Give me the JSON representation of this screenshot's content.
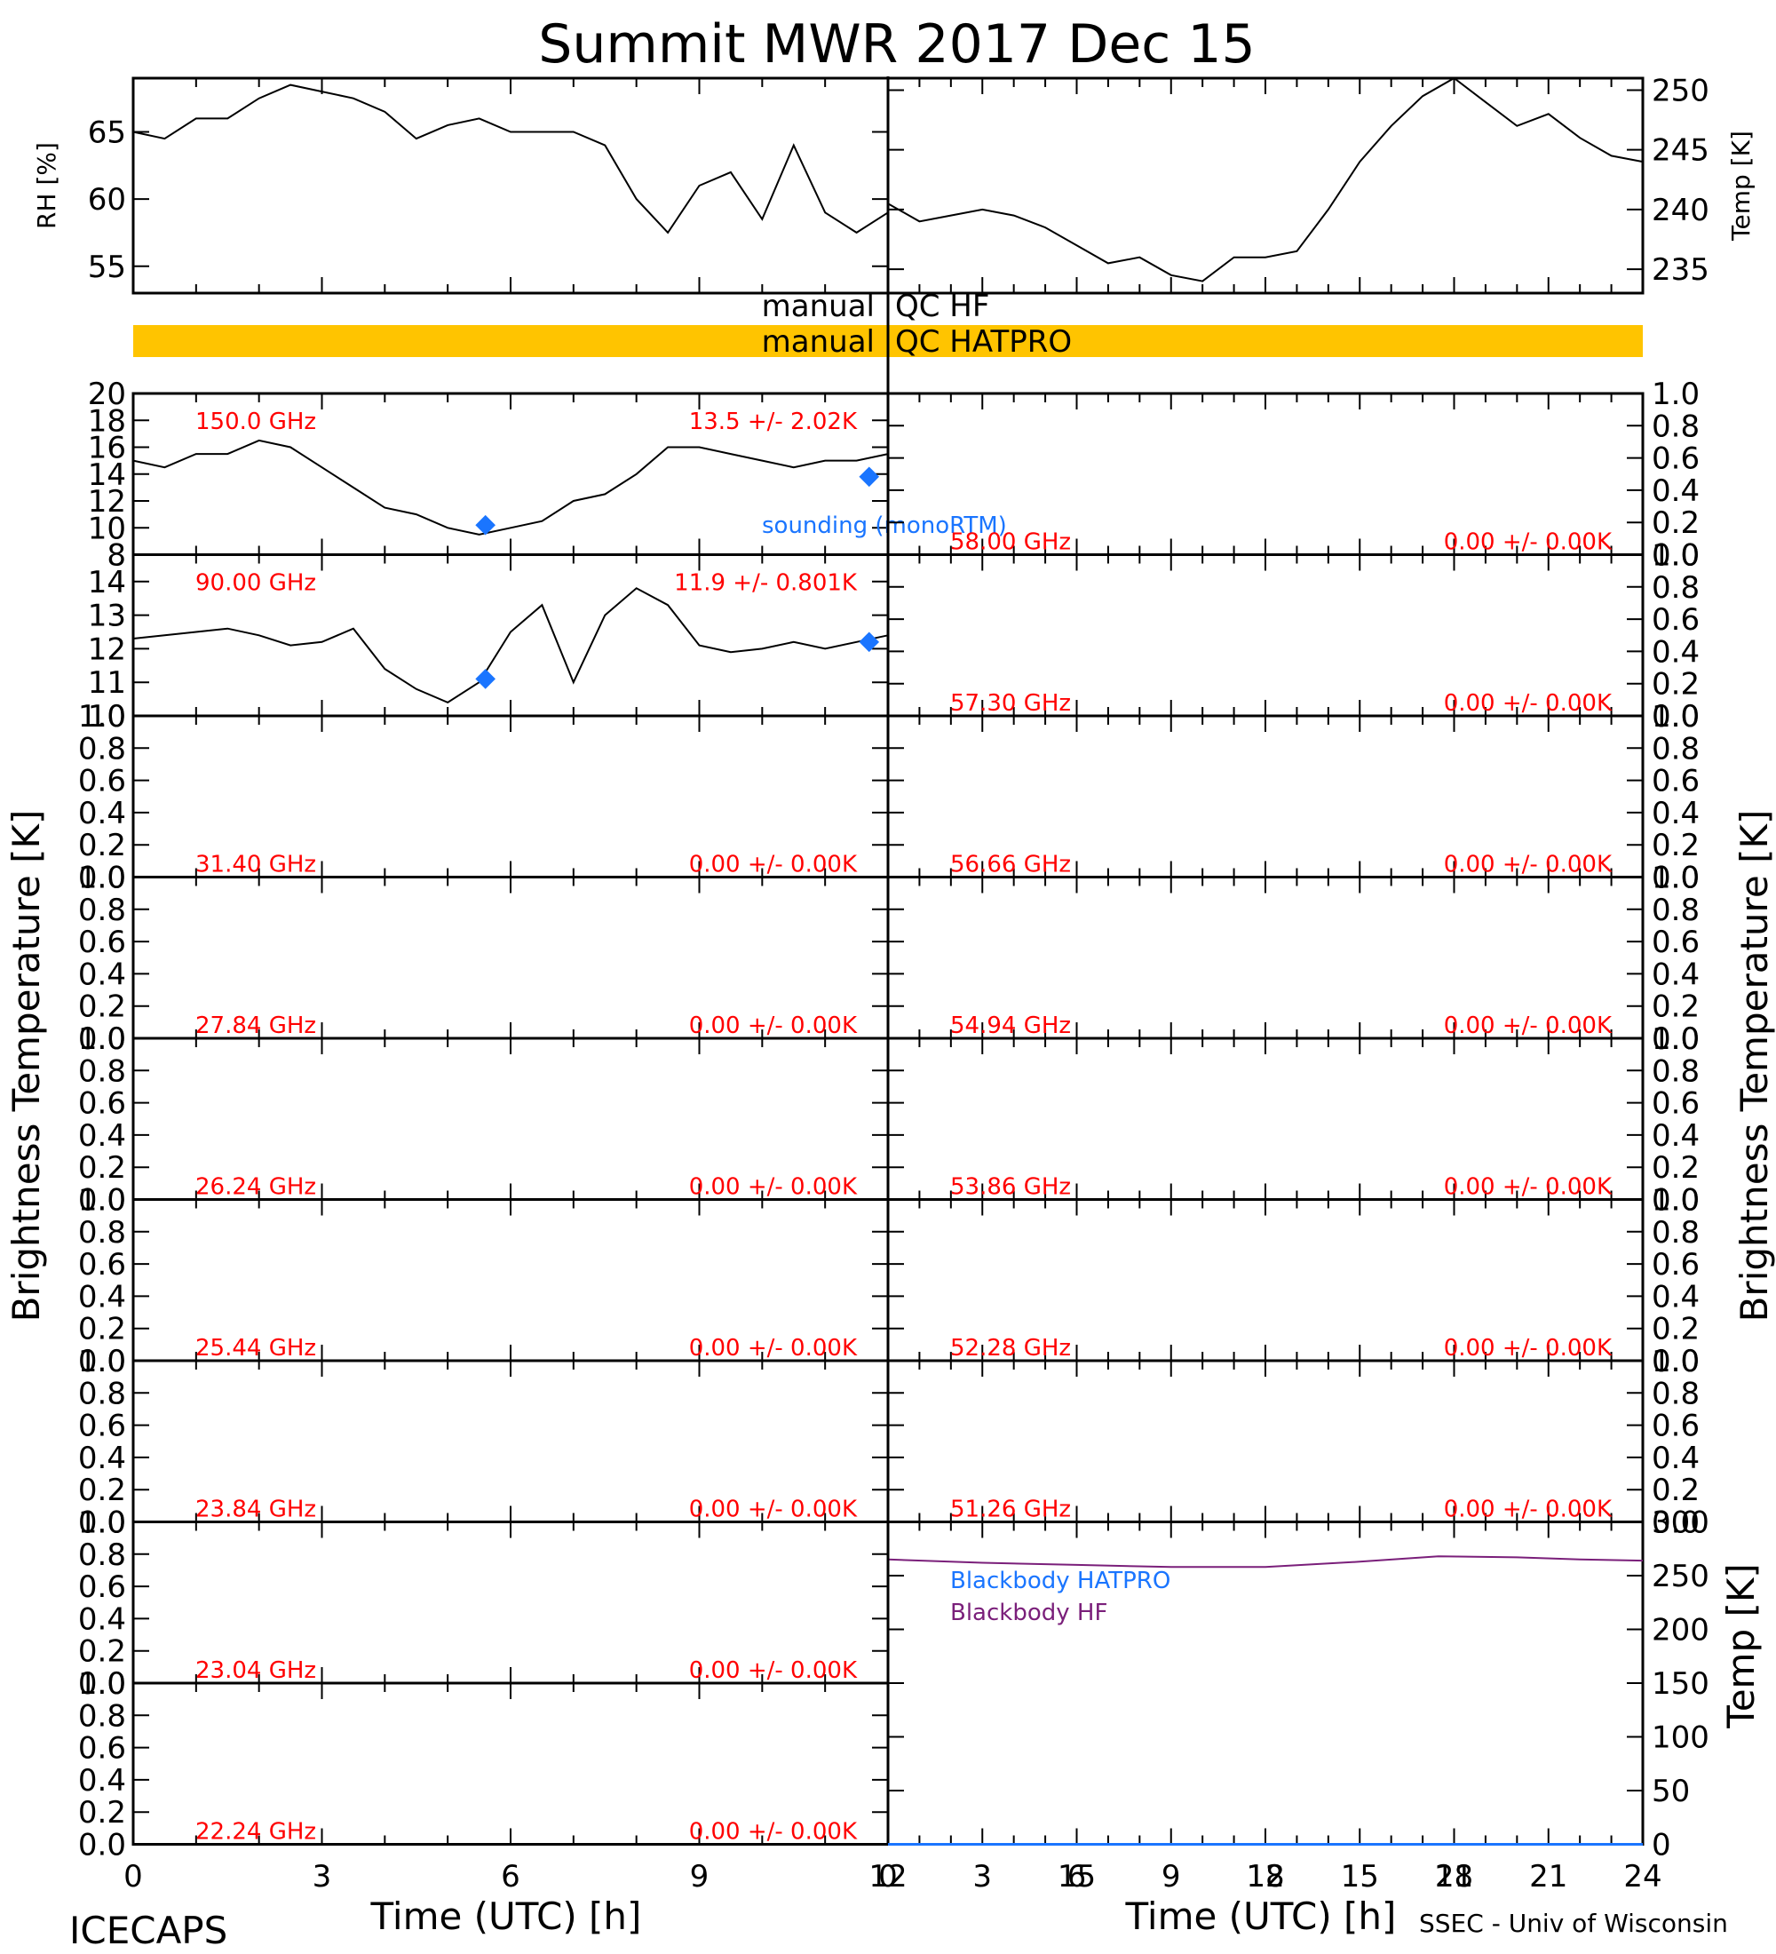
{
  "figure": {
    "title": "Summit MWR 2017 Dec 15",
    "footer_left": "ICECAPS",
    "footer_right": "SSEC - Univ of Wisconsin",
    "xlabel_left": "Time (UTC) [h]",
    "xlabel_right": "Time (UTC) [h]",
    "ylabel_left": "Brightness Temperature [K]",
    "ylabel_right": "Brightness Temperature [K]",
    "qc_hf_label_left": "manual",
    "qc_hf_label_right": "QC HF",
    "qc_hatpro_label_left": "manual",
    "qc_hatpro_label_right": "QC HATPRO",
    "qc_bar_color": "#ffc400",
    "sounding_label": "sounding (monoRTM)",
    "blackbody_hatpro_label": "Blackbody HATPRO",
    "blackbody_hf_label": "Blackbody HF",
    "colors": {
      "data": "#000000",
      "annot": "#ff0000",
      "sounding": "#1a75ff",
      "bb_hf": "#7a1f7a"
    }
  },
  "chart_data": [
    {
      "id": "rh",
      "type": "line",
      "ylabel": "RH [%]",
      "xlim": [
        0,
        12
      ],
      "ylim": [
        53,
        69
      ],
      "yticks": [
        55,
        60,
        65
      ],
      "x": [
        0,
        0.5,
        1,
        1.5,
        2,
        2.5,
        3,
        3.5,
        4,
        4.5,
        5,
        5.5,
        6,
        6.5,
        7,
        7.5,
        8,
        8.5,
        9,
        9.5,
        10,
        10.5,
        11,
        11.5,
        12
      ],
      "y": [
        65,
        64.5,
        66,
        66,
        67.5,
        68.5,
        68,
        67.5,
        66.5,
        64.5,
        65.5,
        66,
        65,
        65,
        65,
        64,
        60,
        57.5,
        61,
        62,
        58.5,
        64,
        59,
        57.5,
        59
      ]
    },
    {
      "id": "temp",
      "type": "line",
      "ylabel": "Temp [K]",
      "xlim": [
        12,
        24
      ],
      "ylim": [
        233,
        251
      ],
      "yticks": [
        235,
        240,
        245,
        250
      ],
      "x": [
        12,
        12.5,
        13,
        13.5,
        14,
        14.5,
        15,
        15.5,
        16,
        16.5,
        17,
        17.5,
        18,
        18.5,
        19,
        19.5,
        20,
        20.5,
        21,
        21.5,
        22,
        22.5,
        23,
        23.5,
        24
      ],
      "y": [
        240.5,
        239,
        239.5,
        240,
        239.5,
        238.5,
        237,
        235.5,
        236,
        234.5,
        234,
        236,
        236,
        236.5,
        240,
        244,
        247,
        249.5,
        251,
        249,
        247,
        248,
        246,
        244.5,
        244
      ]
    },
    {
      "id": "tb_150",
      "type": "line",
      "freq_label": "150.0 GHz",
      "stats_label": "13.5 +/- 2.02K",
      "xlim": [
        0,
        12
      ],
      "ylim": [
        8,
        20
      ],
      "yticks": [
        8,
        10,
        12,
        14,
        16,
        18,
        20
      ],
      "x": [
        0,
        0.5,
        1,
        1.5,
        2,
        2.5,
        3,
        3.5,
        4,
        4.5,
        5,
        5.5,
        6,
        6.5,
        7,
        7.5,
        8,
        8.5,
        9,
        9.5,
        10,
        10.5,
        11,
        11.5,
        12
      ],
      "y": [
        15,
        14.5,
        15.5,
        15.5,
        16.5,
        16,
        14.5,
        13,
        11.5,
        11,
        10,
        9.5,
        10,
        10.5,
        12,
        12.5,
        14,
        16,
        16,
        15.5,
        15,
        14.5,
        15,
        15,
        15.5
      ],
      "sounding": {
        "x": [
          5.6,
          11.7
        ],
        "y": [
          10.2,
          13.8
        ]
      }
    },
    {
      "id": "tb_90",
      "type": "line",
      "freq_label": "90.00 GHz",
      "stats_label": "11.9 +/- 0.801K",
      "xlim": [
        0,
        12
      ],
      "ylim": [
        10,
        14.8
      ],
      "yticks": [
        10,
        11,
        12,
        13,
        14
      ],
      "x": [
        0,
        0.5,
        1,
        1.5,
        2,
        2.5,
        3,
        3.5,
        4,
        4.5,
        5,
        5.5,
        6,
        6.5,
        7,
        7.5,
        8,
        8.5,
        9,
        9.5,
        10,
        10.5,
        11,
        11.5,
        12
      ],
      "y": [
        12.3,
        12.4,
        12.5,
        12.6,
        12.4,
        12.1,
        12.2,
        12.6,
        11.4,
        10.8,
        10.4,
        11,
        12.5,
        13.3,
        11,
        13,
        13.8,
        13.3,
        12.1,
        11.9,
        12,
        12.2,
        12,
        12.2,
        12.4
      ],
      "sounding": {
        "x": [
          5.6,
          11.7
        ],
        "y": [
          11.1,
          12.2
        ]
      }
    },
    {
      "id": "tb_58",
      "freq_label": "58.00 GHz",
      "stats_label": "0.00 +/- 0.00K",
      "ylim": [
        0,
        1
      ],
      "yticks": [
        0.0,
        0.2,
        0.4,
        0.6,
        0.8,
        1.0
      ]
    },
    {
      "id": "tb_57",
      "freq_label": "57.30 GHz",
      "stats_label": "0.00 +/- 0.00K",
      "ylim": [
        0,
        1
      ],
      "yticks": [
        0.0,
        0.2,
        0.4,
        0.6,
        0.8,
        1.0
      ]
    },
    {
      "id": "tb_31",
      "freq_label": "31.40 GHz",
      "stats_label": "0.00 +/- 0.00K",
      "ylim": [
        0,
        1
      ],
      "yticks": [
        0.0,
        0.2,
        0.4,
        0.6,
        0.8,
        1.0
      ]
    },
    {
      "id": "tb_56",
      "freq_label": "56.66 GHz",
      "stats_label": "0.00 +/- 0.00K",
      "ylim": [
        0,
        1
      ],
      "yticks": [
        0.0,
        0.2,
        0.4,
        0.6,
        0.8,
        1.0
      ]
    },
    {
      "id": "tb_27",
      "freq_label": "27.84 GHz",
      "stats_label": "0.00 +/- 0.00K",
      "ylim": [
        0,
        1
      ],
      "yticks": [
        0.0,
        0.2,
        0.4,
        0.6,
        0.8,
        1.0
      ]
    },
    {
      "id": "tb_54",
      "freq_label": "54.94 GHz",
      "stats_label": "0.00 +/- 0.00K",
      "ylim": [
        0,
        1
      ],
      "yticks": [
        0.0,
        0.2,
        0.4,
        0.6,
        0.8,
        1.0
      ]
    },
    {
      "id": "tb_26",
      "freq_label": "26.24 GHz",
      "stats_label": "0.00 +/- 0.00K",
      "ylim": [
        0,
        1
      ],
      "yticks": [
        0.0,
        0.2,
        0.4,
        0.6,
        0.8,
        1.0
      ]
    },
    {
      "id": "tb_53",
      "freq_label": "53.86 GHz",
      "stats_label": "0.00 +/- 0.00K",
      "ylim": [
        0,
        1
      ],
      "yticks": [
        0.0,
        0.2,
        0.4,
        0.6,
        0.8,
        1.0
      ]
    },
    {
      "id": "tb_25",
      "freq_label": "25.44 GHz",
      "stats_label": "0.00 +/- 0.00K",
      "ylim": [
        0,
        1
      ],
      "yticks": [
        0.0,
        0.2,
        0.4,
        0.6,
        0.8,
        1.0
      ]
    },
    {
      "id": "tb_52",
      "freq_label": "52.28 GHz",
      "stats_label": "0.00 +/- 0.00K",
      "ylim": [
        0,
        1
      ],
      "yticks": [
        0.0,
        0.2,
        0.4,
        0.6,
        0.8,
        1.0
      ]
    },
    {
      "id": "tb_23a",
      "freq_label": "23.84 GHz",
      "stats_label": "0.00 +/- 0.00K",
      "ylim": [
        0,
        1
      ],
      "yticks": [
        0.0,
        0.2,
        0.4,
        0.6,
        0.8,
        1.0
      ]
    },
    {
      "id": "tb_51",
      "freq_label": "51.26 GHz",
      "stats_label": "0.00 +/- 0.00K",
      "ylim": [
        0,
        1
      ],
      "yticks": [
        0.0,
        0.2,
        0.4,
        0.6,
        0.8,
        1.0
      ]
    },
    {
      "id": "tb_23b",
      "freq_label": "23.04 GHz",
      "stats_label": "0.00 +/- 0.00K",
      "ylim": [
        0,
        1
      ],
      "yticks": [
        0.0,
        0.2,
        0.4,
        0.6,
        0.8,
        1.0
      ]
    },
    {
      "id": "tb_22",
      "freq_label": "22.24 GHz",
      "stats_label": "0.00 +/- 0.00K",
      "ylim": [
        0,
        1
      ],
      "yticks": [
        0.0,
        0.2,
        0.4,
        0.6,
        0.8,
        1.0
      ]
    },
    {
      "id": "blackbody",
      "type": "line",
      "ylabel": "Temp [K]",
      "xlim": [
        0,
        24
      ],
      "ylim": [
        0,
        300
      ],
      "yticks": [
        0,
        50,
        100,
        150,
        200,
        250,
        300
      ],
      "series": [
        {
          "name": "Blackbody HF",
          "x": [
            0,
            3,
            6,
            9,
            12,
            15,
            17.5,
            20,
            22,
            24
          ],
          "y": [
            265,
            262,
            260,
            258,
            258,
            263,
            268,
            267,
            265,
            264
          ]
        },
        {
          "name": "Blackbody HATPRO",
          "x": [
            0,
            24
          ],
          "y": [
            0,
            0
          ]
        }
      ]
    }
  ],
  "x_ticks": {
    "left": [
      "0",
      "3",
      "6",
      "9",
      "12",
      "15",
      "18",
      "21"
    ],
    "right": [
      "0",
      "3",
      "6",
      "9",
      "12",
      "15",
      "18",
      "21",
      "24"
    ]
  }
}
